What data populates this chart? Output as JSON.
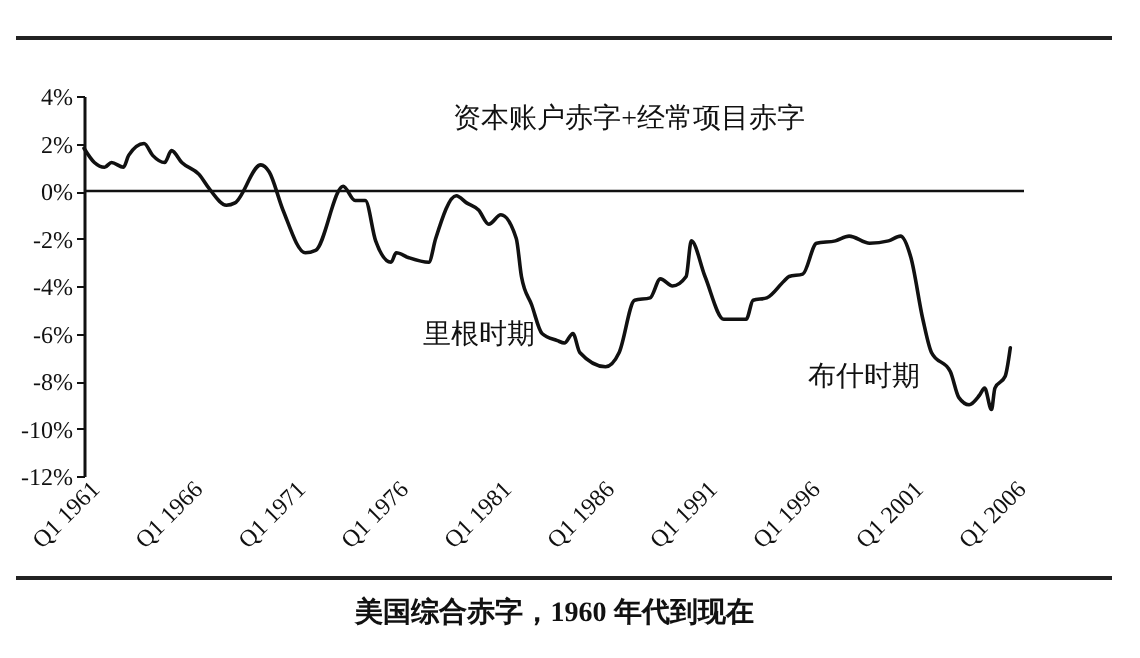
{
  "chart_data": {
    "type": "line",
    "title": "美国综合赤字，1960 年代到现在",
    "annotations": [
      "资本账户赤字+经常项目赤字",
      "里根时期",
      "布什时期"
    ],
    "x": [
      "1960-07",
      "1961-01",
      "1961-07",
      "1961-11",
      "1962-06",
      "1962-09",
      "1963-06",
      "1963-11",
      "1964-06",
      "1964-10",
      "1965-04",
      "1966-02",
      "1966-08",
      "1967-06",
      "1967-11",
      "1969-02",
      "1969-07",
      "1970-03",
      "1971-04",
      "1971-10",
      "1973-02",
      "1973-09",
      "1974-03",
      "1974-09",
      "1975-06",
      "1975-09",
      "1976-04",
      "1977-04",
      "1977-08",
      "1978-08",
      "1979-02",
      "1979-09",
      "1980-03",
      "1980-10",
      "1981-07",
      "1981-10",
      "1982-04",
      "1982-10",
      "1983-07",
      "1983-11",
      "1984-04",
      "1984-08",
      "1985-11",
      "1986-07",
      "1987-04",
      "1988-01",
      "1988-07",
      "1989-02",
      "1989-10",
      "1990-01",
      "1990-09",
      "1991-08",
      "1992-09",
      "1993-01",
      "1993-09",
      "1994-07",
      "1994-10",
      "1995-06",
      "1996-02",
      "1997-01",
      "1997-09",
      "1998-09",
      "1999-08",
      "2000-03",
      "2000-09",
      "2001-04",
      "2001-09",
      "2002-08",
      "2003-01",
      "2003-07",
      "2004-01",
      "2004-04",
      "2004-08",
      "2004-10",
      "2005-04",
      "2005-07"
    ],
    "series": [
      {
        "color": "#111111",
        "values": [
          1.8,
          1.2,
          1.0,
          1.2,
          1.0,
          1.5,
          2.0,
          1.5,
          1.2,
          1.7,
          1.2,
          0.7,
          0.1,
          -0.6,
          -0.5,
          1.1,
          0.8,
          -0.8,
          -2.6,
          -2.5,
          0.2,
          -0.4,
          -0.4,
          -2.1,
          -3.0,
          -2.6,
          -2.8,
          -3.0,
          -2.0,
          -0.2,
          -0.5,
          -0.8,
          -1.4,
          -1.0,
          -2.0,
          -3.6,
          -4.8,
          -6.0,
          -6.3,
          -6.4,
          -6.0,
          -6.8,
          -7.4,
          -6.8,
          -4.6,
          -4.5,
          -3.7,
          -4.0,
          -3.6,
          -2.1,
          -3.6,
          -5.4,
          -5.4,
          -4.6,
          -4.5,
          -3.8,
          -3.6,
          -3.5,
          -2.2,
          -2.1,
          -1.9,
          -2.2,
          -2.1,
          -1.9,
          -2.8,
          -5.4,
          -6.8,
          -7.6,
          -8.7,
          -9.0,
          -8.6,
          -8.3,
          -9.2,
          -8.3,
          -7.8,
          -6.6
        ]
      }
    ],
    "xlim": [
      "1960-07",
      "2006-03"
    ],
    "xticks": [
      {
        "value": "1961-01",
        "label": "Q1 1961"
      },
      {
        "value": "1966-01",
        "label": "Q1 1966"
      },
      {
        "value": "1971-01",
        "label": "Q1 1971"
      },
      {
        "value": "1976-01",
        "label": "Q1 1976"
      },
      {
        "value": "1981-01",
        "label": "Q1 1981"
      },
      {
        "value": "1986-01",
        "label": "Q1 1986"
      },
      {
        "value": "1991-01",
        "label": "Q1 1991"
      },
      {
        "value": "1996-01",
        "label": "Q1 1996"
      },
      {
        "value": "2001-01",
        "label": "Q1 2001"
      },
      {
        "value": "2006-01",
        "label": "Q1 2006"
      }
    ],
    "ylim": [
      -12,
      4
    ],
    "yticks": [
      {
        "value": 4,
        "label": "4%"
      },
      {
        "value": 2,
        "label": "2%"
      },
      {
        "value": 0,
        "label": "0%"
      },
      {
        "value": -2,
        "label": "-2%"
      },
      {
        "value": -4,
        "label": "-4%"
      },
      {
        "value": -6,
        "label": "-6%"
      },
      {
        "value": -8,
        "label": "-8%"
      },
      {
        "value": -10,
        "label": "-10%"
      },
      {
        "value": -12,
        "label": "-12%"
      }
    ],
    "ref_lines": [
      {
        "axis": "y",
        "value": 0,
        "color": "#111111"
      }
    ],
    "grid": false,
    "marker": "none",
    "line_style": "solid"
  }
}
